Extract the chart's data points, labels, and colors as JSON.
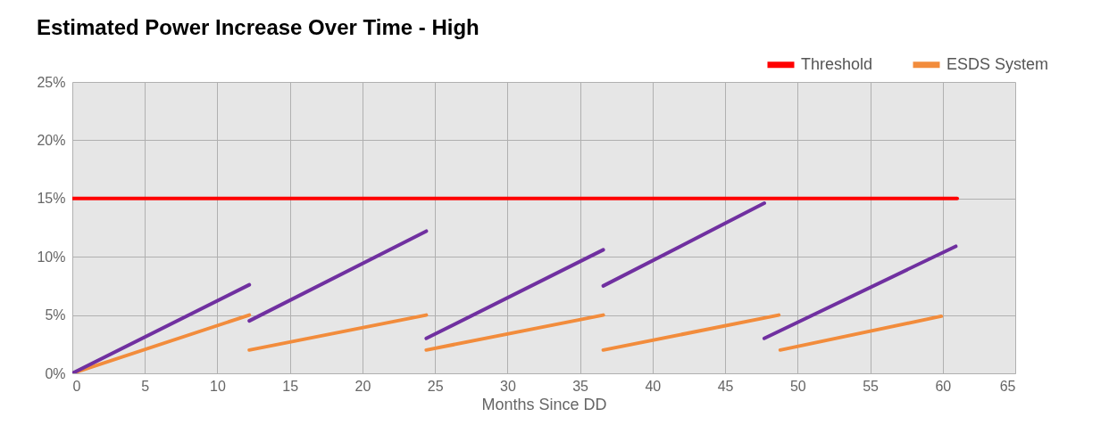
{
  "chart_data": {
    "type": "line",
    "title": "Estimated Power Increase Over Time - High",
    "xlabel": "Months Since DD",
    "xlim": [
      0,
      65
    ],
    "xticks": [
      0,
      5,
      10,
      15,
      20,
      25,
      30,
      35,
      40,
      45,
      50,
      55,
      60,
      65
    ],
    "ylim": [
      0,
      25
    ],
    "yticks": [
      {
        "value": 0,
        "label": "0%"
      },
      {
        "value": 5,
        "label": "5%"
      },
      {
        "value": 10,
        "label": "10%"
      },
      {
        "value": 15,
        "label": "15%"
      },
      {
        "value": 20,
        "label": "20%"
      },
      {
        "value": 25,
        "label": "25%"
      }
    ],
    "grid": true,
    "legend": "top right",
    "marker": "none",
    "line_style": "solid",
    "series": [
      {
        "name": "Threshold",
        "color": "#ff0000",
        "x": [
          0,
          61
        ],
        "values": [
          15,
          15
        ]
      },
      {
        "name": "ESDS System",
        "color": "#f28c3c",
        "x": [
          0,
          12.2,
          null,
          12.2,
          24.4,
          null,
          24.4,
          36.6,
          null,
          36.6,
          48.7,
          null,
          48.8,
          59.9
        ],
        "values": [
          0,
          5.0,
          null,
          2.0,
          5.0,
          null,
          2.0,
          5.0,
          null,
          2.0,
          5.0,
          null,
          2.0,
          4.9
        ]
      },
      {
        "color": "#7030a0",
        "x": [
          0,
          12.2,
          null,
          12.2,
          24.4,
          null,
          24.4,
          36.6,
          null,
          36.6,
          47.7,
          null,
          47.7,
          60.9
        ],
        "values": [
          0,
          7.6,
          null,
          4.5,
          12.2,
          null,
          3.0,
          10.6,
          null,
          7.5,
          14.6,
          null,
          3.0,
          10.9
        ]
      }
    ]
  }
}
